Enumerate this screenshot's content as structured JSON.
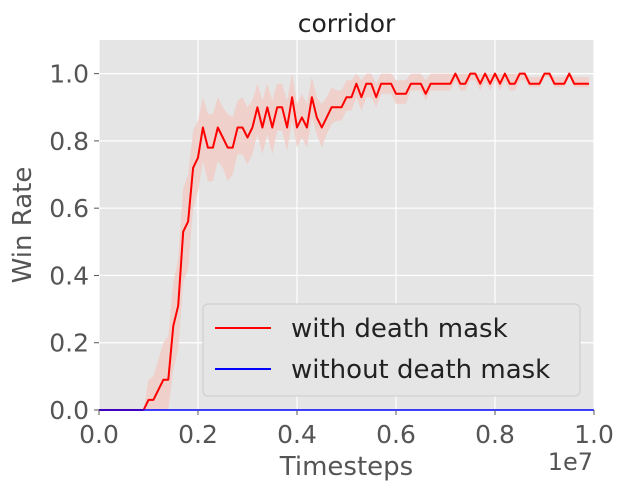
{
  "chart_data": {
    "type": "line",
    "title": "corridor",
    "xlabel": "Timesteps",
    "ylabel": "Win Rate",
    "x_offset_label": "1e7",
    "xlim": [
      0.0,
      1.0
    ],
    "ylim": [
      0.0,
      1.1
    ],
    "xticks": [
      "0.0",
      "0.2",
      "0.4",
      "0.6",
      "0.8",
      "1.0"
    ],
    "yticks": [
      "0.0",
      "0.2",
      "0.4",
      "0.6",
      "0.8",
      "1.0"
    ],
    "grid": true,
    "legend_position": "lower-right",
    "series": [
      {
        "name": "with death mask",
        "color": "#ff0000",
        "band_color": "#f2c8c2",
        "x": [
          0.0,
          0.09,
          0.1,
          0.11,
          0.12,
          0.13,
          0.14,
          0.15,
          0.16,
          0.17,
          0.18,
          0.19,
          0.2,
          0.21,
          0.22,
          0.23,
          0.24,
          0.25,
          0.26,
          0.27,
          0.28,
          0.29,
          0.3,
          0.31,
          0.32,
          0.33,
          0.34,
          0.35,
          0.36,
          0.37,
          0.38,
          0.39,
          0.4,
          0.41,
          0.42,
          0.43,
          0.44,
          0.45,
          0.46,
          0.47,
          0.48,
          0.49,
          0.5,
          0.51,
          0.52,
          0.53,
          0.54,
          0.55,
          0.56,
          0.57,
          0.58,
          0.59,
          0.6,
          0.61,
          0.62,
          0.63,
          0.64,
          0.65,
          0.66,
          0.67,
          0.68,
          0.69,
          0.7,
          0.71,
          0.72,
          0.73,
          0.74,
          0.75,
          0.76,
          0.77,
          0.78,
          0.79,
          0.8,
          0.81,
          0.82,
          0.83,
          0.84,
          0.85,
          0.86,
          0.87,
          0.88,
          0.89,
          0.9,
          0.91,
          0.92,
          0.93,
          0.94,
          0.95,
          0.96,
          0.97,
          0.98,
          0.99
        ],
        "y": [
          0.0,
          0.0,
          0.03,
          0.03,
          0.06,
          0.09,
          0.09,
          0.25,
          0.31,
          0.53,
          0.56,
          0.72,
          0.75,
          0.84,
          0.78,
          0.78,
          0.84,
          0.81,
          0.78,
          0.78,
          0.84,
          0.84,
          0.81,
          0.84,
          0.9,
          0.84,
          0.9,
          0.84,
          0.9,
          0.9,
          0.84,
          0.93,
          0.84,
          0.87,
          0.84,
          0.93,
          0.87,
          0.84,
          0.87,
          0.9,
          0.9,
          0.9,
          0.93,
          0.93,
          0.97,
          0.93,
          0.97,
          0.97,
          0.93,
          0.97,
          0.97,
          0.97,
          0.94,
          0.94,
          0.94,
          0.97,
          0.97,
          0.97,
          0.94,
          0.97,
          0.97,
          0.97,
          0.97,
          0.97,
          1.0,
          0.97,
          0.97,
          1.0,
          1.0,
          0.97,
          1.0,
          0.97,
          1.0,
          0.97,
          1.0,
          0.97,
          0.97,
          1.0,
          1.0,
          0.97,
          0.97,
          0.97,
          1.0,
          1.0,
          0.97,
          0.97,
          0.97,
          1.0,
          0.97,
          0.97,
          0.97,
          0.97
        ],
        "y_low": [
          0.0,
          0.0,
          0.0,
          0.0,
          0.0,
          0.0,
          0.0,
          0.12,
          0.18,
          0.38,
          0.42,
          0.6,
          0.65,
          0.74,
          0.68,
          0.68,
          0.74,
          0.72,
          0.68,
          0.7,
          0.76,
          0.76,
          0.73,
          0.76,
          0.82,
          0.76,
          0.82,
          0.76,
          0.83,
          0.83,
          0.77,
          0.86,
          0.78,
          0.81,
          0.78,
          0.87,
          0.82,
          0.78,
          0.82,
          0.85,
          0.86,
          0.86,
          0.89,
          0.89,
          0.93,
          0.89,
          0.93,
          0.93,
          0.9,
          0.94,
          0.94,
          0.94,
          0.91,
          0.91,
          0.91,
          0.95,
          0.95,
          0.95,
          0.92,
          0.95,
          0.95,
          0.95,
          0.95,
          0.95,
          0.98,
          0.95,
          0.95,
          0.98,
          0.98,
          0.95,
          0.98,
          0.95,
          0.98,
          0.95,
          0.98,
          0.95,
          0.95,
          0.98,
          0.98,
          0.96,
          0.96,
          0.96,
          0.99,
          0.99,
          0.96,
          0.96,
          0.96,
          0.99,
          0.96,
          0.96,
          0.96,
          0.96
        ],
        "y_high": [
          0.0,
          0.0,
          0.09,
          0.1,
          0.15,
          0.2,
          0.22,
          0.38,
          0.45,
          0.66,
          0.7,
          0.83,
          0.86,
          0.93,
          0.88,
          0.88,
          0.93,
          0.9,
          0.88,
          0.87,
          0.92,
          0.93,
          0.9,
          0.92,
          0.97,
          0.92,
          0.97,
          0.92,
          0.97,
          0.97,
          0.92,
          1.0,
          0.91,
          0.94,
          0.91,
          0.99,
          0.93,
          0.91,
          0.93,
          0.96,
          0.95,
          0.95,
          0.98,
          0.98,
          1.0,
          0.98,
          1.0,
          1.0,
          0.97,
          1.0,
          1.0,
          1.0,
          0.98,
          0.98,
          0.98,
          1.0,
          1.0,
          1.0,
          0.98,
          1.0,
          1.0,
          1.0,
          1.0,
          1.0,
          1.0,
          1.0,
          1.0,
          1.0,
          1.0,
          1.0,
          1.0,
          1.0,
          1.0,
          1.0,
          1.0,
          1.0,
          1.0,
          1.0,
          1.0,
          0.99,
          0.99,
          0.99,
          1.0,
          1.0,
          0.99,
          0.99,
          0.99,
          1.0,
          0.99,
          0.99,
          0.99,
          0.99
        ]
      },
      {
        "name": "without death mask",
        "color": "#0000ff",
        "x": [
          0.0,
          1.0
        ],
        "y": [
          0.0,
          0.0
        ]
      }
    ]
  }
}
